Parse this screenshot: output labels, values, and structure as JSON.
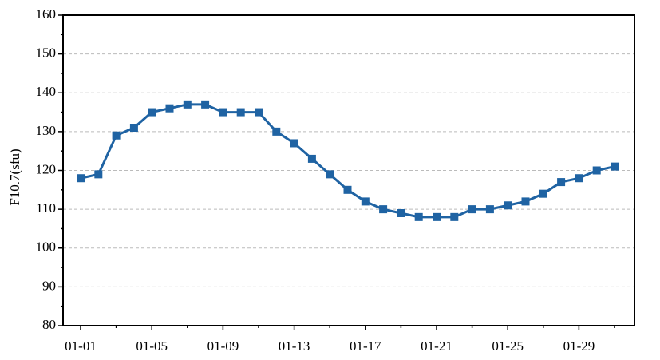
{
  "chart_data": {
    "type": "line",
    "y_label": "F10.7(sfu)",
    "categories": [
      "01-01",
      null,
      null,
      null,
      "01-05",
      null,
      null,
      null,
      "01-09",
      null,
      null,
      null,
      "01-13",
      null,
      null,
      null,
      "01-17",
      null,
      null,
      null,
      "01-21",
      null,
      null,
      null,
      "01-25",
      null,
      null,
      null,
      "01-29",
      null,
      null
    ],
    "series": [
      {
        "name": "F10.7",
        "color": "#1f63a3",
        "values": [
          118,
          119,
          129,
          131,
          135,
          136,
          137,
          137,
          135,
          135,
          135,
          130,
          127,
          123,
          119,
          115,
          112,
          110,
          109,
          108,
          108,
          108,
          110,
          110,
          111,
          112,
          114,
          117,
          118,
          120,
          121
        ]
      }
    ],
    "ylim": [
      80,
      160
    ],
    "yticks": [
      80,
      90,
      100,
      110,
      120,
      130,
      140,
      150,
      160
    ],
    "grid": true
  }
}
